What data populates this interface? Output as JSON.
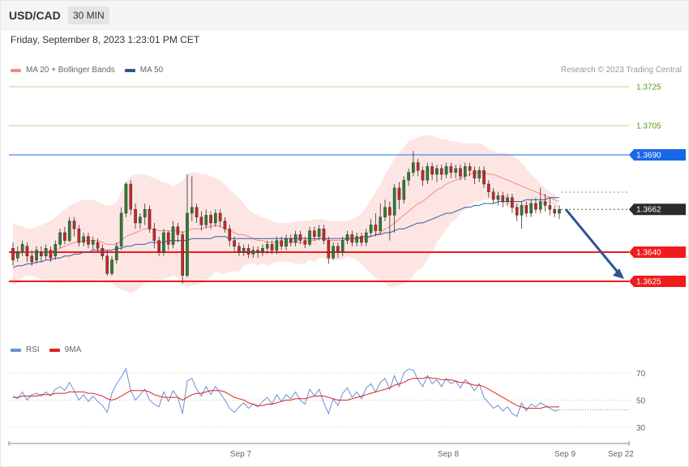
{
  "header": {
    "symbol": "USD/CAD",
    "timeframe": "30 MIN"
  },
  "datetime": "Friday, September 8, 2023 1:23:01 PM CET",
  "legend_main": [
    {
      "label": "MA 20 + Bollinger Bands",
      "color": "#f28b82"
    },
    {
      "label": "MA 50",
      "color": "#2f5597"
    }
  ],
  "legend_rsi": [
    {
      "label": "RSI",
      "color": "#6a8fd8"
    },
    {
      "label": "9MA",
      "color": "#e02020"
    }
  ],
  "copyright": "Research © 2023 Trading Central",
  "chart_data": {
    "type": "candlestick",
    "price_axis_labels": [
      "1.3725",
      "1.3705",
      "1.3690",
      "1.3662",
      "1.3640",
      "1.3625"
    ],
    "levels": [
      {
        "label": "1.3725",
        "value": 1.3725,
        "kind": "target"
      },
      {
        "label": "1.3705",
        "value": 1.3705,
        "kind": "target"
      },
      {
        "label": "1.3690",
        "value": 1.369,
        "kind": "resistance"
      },
      {
        "label": "1.3662",
        "value": 1.3662,
        "kind": "last_price"
      },
      {
        "label": "1.3640",
        "value": 1.364,
        "kind": "support"
      },
      {
        "label": "1.3625",
        "value": 1.3625,
        "kind": "support"
      }
    ],
    "x_tick_labels": [
      "Sep 7",
      "Sep 8",
      "Sep 9",
      "Sep 22"
    ],
    "rsi_levels": [
      "70",
      "50",
      "30"
    ],
    "forecast": {
      "from": 1.3662,
      "to": 1.3625
    },
    "candles": [
      [
        1.3642,
        1.3636,
        1.3645,
        1.3633
      ],
      [
        1.3637,
        1.364,
        1.3643,
        1.3635
      ],
      [
        1.364,
        1.3644,
        1.3646,
        1.3638
      ],
      [
        1.3643,
        1.3638,
        1.3645,
        1.3635
      ],
      [
        1.3638,
        1.3635,
        1.3641,
        1.3633
      ],
      [
        1.3636,
        1.3641,
        1.3643,
        1.3634
      ],
      [
        1.364,
        1.3638,
        1.3643,
        1.3635
      ],
      [
        1.3638,
        1.3642,
        1.3644,
        1.3636
      ],
      [
        1.3641,
        1.3637,
        1.3643,
        1.3635
      ],
      [
        1.3638,
        1.3644,
        1.3646,
        1.3636
      ],
      [
        1.3644,
        1.365,
        1.3652,
        1.3642
      ],
      [
        1.365,
        1.3646,
        1.3653,
        1.3644
      ],
      [
        1.3646,
        1.3656,
        1.3658,
        1.3645
      ],
      [
        1.3656,
        1.3652,
        1.3658,
        1.3648
      ],
      [
        1.3652,
        1.3645,
        1.3654,
        1.3643
      ],
      [
        1.3645,
        1.3648,
        1.365,
        1.3643
      ],
      [
        1.3648,
        1.3644,
        1.365,
        1.3642
      ],
      [
        1.3644,
        1.3646,
        1.3648,
        1.3641
      ],
      [
        1.3645,
        1.3642,
        1.3647,
        1.364
      ],
      [
        1.3642,
        1.3638,
        1.3644,
        1.3636
      ],
      [
        1.3638,
        1.3629,
        1.3641,
        1.3628
      ],
      [
        1.3629,
        1.3636,
        1.3638,
        1.3628
      ],
      [
        1.3636,
        1.3643,
        1.3645,
        1.3634
      ],
      [
        1.3643,
        1.366,
        1.3663,
        1.3641
      ],
      [
        1.366,
        1.3675,
        1.3676,
        1.3658
      ],
      [
        1.3675,
        1.3662,
        1.3677,
        1.3659
      ],
      [
        1.3662,
        1.3655,
        1.3665,
        1.3652
      ],
      [
        1.3655,
        1.3658,
        1.366,
        1.3652
      ],
      [
        1.3658,
        1.3662,
        1.3665,
        1.3654
      ],
      [
        1.3662,
        1.3652,
        1.3664,
        1.365
      ],
      [
        1.3652,
        1.3646,
        1.3655,
        1.3642
      ],
      [
        1.3646,
        1.364,
        1.3648,
        1.3638
      ],
      [
        1.364,
        1.365,
        1.3652,
        1.3638
      ],
      [
        1.365,
        1.3644,
        1.3651,
        1.3641
      ],
      [
        1.3644,
        1.3653,
        1.3656,
        1.3642
      ],
      [
        1.3653,
        1.3649,
        1.3655,
        1.3645
      ],
      [
        1.3649,
        1.3628,
        1.3651,
        1.3624
      ],
      [
        1.3628,
        1.366,
        1.368,
        1.3627
      ],
      [
        1.366,
        1.3663,
        1.3679,
        1.3656
      ],
      [
        1.3663,
        1.3658,
        1.3665,
        1.3655
      ],
      [
        1.3658,
        1.3654,
        1.3661,
        1.3651
      ],
      [
        1.3654,
        1.3659,
        1.3662,
        1.3652
      ],
      [
        1.3659,
        1.3655,
        1.3661,
        1.3652
      ],
      [
        1.3655,
        1.366,
        1.3662,
        1.3653
      ],
      [
        1.366,
        1.3656,
        1.3662,
        1.3653
      ],
      [
        1.3656,
        1.3652,
        1.3658,
        1.365
      ],
      [
        1.3652,
        1.3646,
        1.3654,
        1.3643
      ],
      [
        1.3646,
        1.3643,
        1.3648,
        1.364
      ],
      [
        1.3643,
        1.364,
        1.3645,
        1.3638
      ],
      [
        1.364,
        1.3642,
        1.3644,
        1.3638
      ],
      [
        1.3642,
        1.3639,
        1.3644,
        1.3637
      ],
      [
        1.3639,
        1.3641,
        1.3643,
        1.3637
      ],
      [
        1.3641,
        1.364,
        1.3643,
        1.3637
      ],
      [
        1.364,
        1.3642,
        1.3644,
        1.3638
      ],
      [
        1.3642,
        1.3644,
        1.3646,
        1.3639
      ],
      [
        1.3644,
        1.3641,
        1.3646,
        1.3639
      ],
      [
        1.3641,
        1.3646,
        1.3648,
        1.3639
      ],
      [
        1.3646,
        1.3643,
        1.3648,
        1.3641
      ],
      [
        1.3643,
        1.3647,
        1.3649,
        1.3641
      ],
      [
        1.3647,
        1.3645,
        1.3649,
        1.3643
      ],
      [
        1.3645,
        1.3649,
        1.3651,
        1.3643
      ],
      [
        1.3649,
        1.3646,
        1.3651,
        1.3644
      ],
      [
        1.3646,
        1.3644,
        1.3648,
        1.3642
      ],
      [
        1.3644,
        1.3651,
        1.3653,
        1.3643
      ],
      [
        1.3651,
        1.3648,
        1.3653,
        1.3646
      ],
      [
        1.3648,
        1.3652,
        1.3654,
        1.3646
      ],
      [
        1.3652,
        1.3646,
        1.3654,
        1.3644
      ],
      [
        1.3646,
        1.3637,
        1.3648,
        1.3634
      ],
      [
        1.3637,
        1.3643,
        1.3645,
        1.3636
      ],
      [
        1.3643,
        1.364,
        1.3645,
        1.3637
      ],
      [
        1.364,
        1.3646,
        1.3648,
        1.3638
      ],
      [
        1.3646,
        1.3649,
        1.3651,
        1.3644
      ],
      [
        1.3649,
        1.3645,
        1.3651,
        1.3643
      ],
      [
        1.3645,
        1.3648,
        1.365,
        1.3643
      ],
      [
        1.3648,
        1.3645,
        1.365,
        1.3643
      ],
      [
        1.3645,
        1.365,
        1.3652,
        1.3643
      ],
      [
        1.365,
        1.3654,
        1.3657,
        1.3648
      ],
      [
        1.3654,
        1.3651,
        1.366,
        1.3648
      ],
      [
        1.3651,
        1.3658,
        1.3665,
        1.3649
      ],
      [
        1.3658,
        1.3663,
        1.3667,
        1.3656
      ],
      [
        1.3663,
        1.3659,
        1.3666,
        1.3646
      ],
      [
        1.3659,
        1.3673,
        1.3675,
        1.365
      ],
      [
        1.3673,
        1.3667,
        1.3676,
        1.3662
      ],
      [
        1.3667,
        1.3677,
        1.3679,
        1.3665
      ],
      [
        1.3677,
        1.3681,
        1.3683,
        1.3674
      ],
      [
        1.3681,
        1.3686,
        1.3692,
        1.3679
      ],
      [
        1.3686,
        1.3682,
        1.3688,
        1.3679
      ],
      [
        1.3682,
        1.3677,
        1.3684,
        1.3674
      ],
      [
        1.3677,
        1.3684,
        1.3686,
        1.3675
      ],
      [
        1.3684,
        1.368,
        1.3686,
        1.3677
      ],
      [
        1.368,
        1.3683,
        1.3685,
        1.3676
      ],
      [
        1.3683,
        1.368,
        1.3685,
        1.3677
      ],
      [
        1.368,
        1.3684,
        1.3686,
        1.3678
      ],
      [
        1.3684,
        1.3681,
        1.3686,
        1.3678
      ],
      [
        1.3681,
        1.3683,
        1.3685,
        1.3678
      ],
      [
        1.3683,
        1.3679,
        1.3685,
        1.3677
      ],
      [
        1.3679,
        1.3684,
        1.3686,
        1.3677
      ],
      [
        1.3684,
        1.3682,
        1.3686,
        1.3679
      ],
      [
        1.3682,
        1.3678,
        1.3684,
        1.3675
      ],
      [
        1.3678,
        1.3682,
        1.3684,
        1.3676
      ],
      [
        1.3682,
        1.3675,
        1.3684,
        1.3673
      ],
      [
        1.3675,
        1.3671,
        1.3677,
        1.3668
      ],
      [
        1.3671,
        1.3667,
        1.3673,
        1.3665
      ],
      [
        1.3667,
        1.3669,
        1.3671,
        1.3664
      ],
      [
        1.3669,
        1.3666,
        1.3671,
        1.3663
      ],
      [
        1.3666,
        1.3668,
        1.367,
        1.3664
      ],
      [
        1.3668,
        1.3663,
        1.367,
        1.366
      ],
      [
        1.3663,
        1.3659,
        1.3665,
        1.3656
      ],
      [
        1.3659,
        1.3664,
        1.3666,
        1.3652
      ],
      [
        1.3664,
        1.366,
        1.3666,
        1.3658
      ],
      [
        1.366,
        1.3665,
        1.3667,
        1.3658
      ],
      [
        1.3665,
        1.3662,
        1.3668,
        1.366
      ],
      [
        1.3662,
        1.3666,
        1.3673,
        1.366
      ],
      [
        1.3666,
        1.3664,
        1.367,
        1.3661
      ],
      [
        1.3664,
        1.3662,
        1.3668,
        1.3659
      ],
      [
        1.3662,
        1.366,
        1.3664,
        1.3658
      ],
      [
        1.366,
        1.3662,
        1.3664,
        1.3657
      ]
    ],
    "ma20": [
      1.3639,
      1.3639,
      1.364,
      1.364,
      1.364,
      1.364,
      1.364,
      1.364,
      1.364,
      1.3641,
      1.3642,
      1.3643,
      1.3644,
      1.3645,
      1.3645,
      1.3646,
      1.3646,
      1.3646,
      1.3646,
      1.3645,
      1.3644,
      1.3644,
      1.3644,
      1.3646,
      1.3648,
      1.3649,
      1.365,
      1.3651,
      1.3652,
      1.3652,
      1.3652,
      1.3651,
      1.3651,
      1.3651,
      1.3651,
      1.3651,
      1.365,
      1.3651,
      1.3652,
      1.3652,
      1.3652,
      1.3653,
      1.3653,
      1.3654,
      1.3653,
      1.3652,
      1.3651,
      1.365,
      1.3649,
      1.3649,
      1.3648,
      1.3647,
      1.3646,
      1.3646,
      1.3645,
      1.3645,
      1.3645,
      1.3645,
      1.3645,
      1.3645,
      1.3645,
      1.3645,
      1.3645,
      1.3646,
      1.3646,
      1.3647,
      1.3647,
      1.3646,
      1.3646,
      1.3646,
      1.3646,
      1.3647,
      1.3647,
      1.3647,
      1.3647,
      1.3647,
      1.3648,
      1.3649,
      1.365,
      1.3652,
      1.3653,
      1.3655,
      1.3657,
      1.3659,
      1.3661,
      1.3663,
      1.3665,
      1.3666,
      1.3668,
      1.367,
      1.3672,
      1.3673,
      1.3675,
      1.3676,
      1.3677,
      1.3678,
      1.3679,
      1.368,
      1.3681,
      1.3681,
      1.3681,
      1.368,
      1.368,
      1.3679,
      1.3678,
      1.3677,
      1.3676,
      1.3675,
      1.3674,
      1.3673,
      1.3672,
      1.3671,
      1.367,
      1.3669,
      1.3668,
      1.3667,
      1.3666
    ],
    "ma50": [
      1.3632,
      1.3633,
      1.3633,
      1.3634,
      1.3634,
      1.3635,
      1.3635,
      1.3636,
      1.3636,
      1.3637,
      1.3637,
      1.3638,
      1.3638,
      1.3639,
      1.3639,
      1.364,
      1.364,
      1.3641,
      1.3641,
      1.3641,
      1.3641,
      1.3641,
      1.3642,
      1.3642,
      1.3643,
      1.3643,
      1.3644,
      1.3644,
      1.3644,
      1.3645,
      1.3645,
      1.3645,
      1.3645,
      1.3646,
      1.3646,
      1.3646,
      1.3646,
      1.3646,
      1.3647,
      1.3647,
      1.3647,
      1.3647,
      1.3647,
      1.3648,
      1.3648,
      1.3648,
      1.3647,
      1.3647,
      1.3647,
      1.3647,
      1.3647,
      1.3647,
      1.3647,
      1.3647,
      1.3647,
      1.3647,
      1.3647,
      1.3647,
      1.3647,
      1.3647,
      1.3647,
      1.3647,
      1.3647,
      1.3647,
      1.3647,
      1.3647,
      1.3647,
      1.3647,
      1.3647,
      1.3647,
      1.3647,
      1.3647,
      1.3647,
      1.3647,
      1.3648,
      1.3648,
      1.3648,
      1.3649,
      1.3649,
      1.365,
      1.365,
      1.3651,
      1.3652,
      1.3652,
      1.3653,
      1.3654,
      1.3655,
      1.3655,
      1.3656,
      1.3657,
      1.3658,
      1.3659,
      1.366,
      1.366,
      1.3661,
      1.3662,
      1.3663,
      1.3663,
      1.3664,
      1.3664,
      1.3665,
      1.3665,
      1.3665,
      1.3666,
      1.3666,
      1.3666,
      1.3666,
      1.3666,
      1.3666,
      1.3667,
      1.3667,
      1.3667,
      1.3667,
      1.3667,
      1.3668,
      1.3668,
      1.3668
    ],
    "bb_upper": [
      1.3655,
      1.3654,
      1.3653,
      1.3652,
      1.3652,
      1.3653,
      1.3654,
      1.3655,
      1.3656,
      1.3658,
      1.366,
      1.3662,
      1.3664,
      1.3665,
      1.3666,
      1.3667,
      1.3667,
      1.3667,
      1.3666,
      1.3665,
      1.3664,
      1.3664,
      1.3666,
      1.3671,
      1.3676,
      1.3679,
      1.368,
      1.368,
      1.368,
      1.3679,
      1.3678,
      1.3677,
      1.3676,
      1.3675,
      1.3674,
      1.3675,
      1.3677,
      1.368,
      1.3681,
      1.3681,
      1.368,
      1.368,
      1.3679,
      1.3678,
      1.3677,
      1.3675,
      1.3672,
      1.367,
      1.3668,
      1.3665,
      1.3662,
      1.366,
      1.3659,
      1.3658,
      1.3657,
      1.3656,
      1.3655,
      1.3655,
      1.3655,
      1.3655,
      1.3656,
      1.3656,
      1.3656,
      1.3656,
      1.3657,
      1.3657,
      1.3657,
      1.3656,
      1.3656,
      1.3656,
      1.3656,
      1.3656,
      1.3657,
      1.3658,
      1.366,
      1.3663,
      1.3667,
      1.3671,
      1.3675,
      1.368,
      1.3684,
      1.3688,
      1.3691,
      1.3694,
      1.3697,
      1.3698,
      1.3699,
      1.37,
      1.37,
      1.37,
      1.3699,
      1.3698,
      1.3698,
      1.3697,
      1.3697,
      1.3696,
      1.3696,
      1.3696,
      1.3696,
      1.3696,
      1.3695,
      1.3693,
      1.3692,
      1.3691,
      1.3691,
      1.3691,
      1.369,
      1.3688,
      1.3686,
      1.3683,
      1.368,
      1.3678,
      1.3675,
      1.3673,
      1.3671,
      1.367
    ],
    "bb_lower": [
      1.3623,
      1.3624,
      1.3627,
      1.3628,
      1.3628,
      1.3627,
      1.3626,
      1.3625,
      1.3624,
      1.3624,
      1.3624,
      1.3624,
      1.3624,
      1.3625,
      1.3624,
      1.3625,
      1.3625,
      1.3625,
      1.3626,
      1.3625,
      1.3624,
      1.3624,
      1.3622,
      1.3621,
      1.362,
      1.3619,
      1.362,
      1.3622,
      1.3624,
      1.3625,
      1.3626,
      1.3625,
      1.3626,
      1.3627,
      1.3628,
      1.3627,
      1.3623,
      1.3622,
      1.3623,
      1.3623,
      1.3624,
      1.3626,
      1.3627,
      1.363,
      1.3629,
      1.3629,
      1.363,
      1.363,
      1.363,
      1.3633,
      1.3634,
      1.3634,
      1.3633,
      1.3634,
      1.3633,
      1.3634,
      1.3635,
      1.3635,
      1.3635,
      1.3635,
      1.3634,
      1.3634,
      1.3634,
      1.3636,
      1.3635,
      1.3637,
      1.3637,
      1.3636,
      1.3636,
      1.3636,
      1.3636,
      1.3638,
      1.3637,
      1.3636,
      1.3634,
      1.3631,
      1.3629,
      1.3627,
      1.3625,
      1.3624,
      1.3622,
      1.3622,
      1.3623,
      1.3624,
      1.3625,
      1.3628,
      1.3631,
      1.3632,
      1.3636,
      1.364,
      1.3645,
      1.3648,
      1.3652,
      1.3655,
      1.3657,
      1.366,
      1.3662,
      1.3664,
      1.3666,
      1.3666,
      1.3667,
      1.3667,
      1.3668,
      1.3667,
      1.3665,
      1.3663,
      1.3662,
      1.3662,
      1.3662,
      1.3663,
      1.3664,
      1.3664,
      1.3665,
      1.3665,
      1.3665,
      1.3664,
      1.3662
    ],
    "rsi": [
      53,
      51,
      56,
      50,
      54,
      55,
      53,
      56,
      53,
      58,
      60,
      57,
      63,
      57,
      50,
      54,
      49,
      53,
      49,
      46,
      41,
      55,
      62,
      67,
      73,
      57,
      50,
      54,
      58,
      50,
      47,
      45,
      56,
      49,
      57,
      52,
      40,
      64,
      66,
      58,
      53,
      60,
      54,
      60,
      55,
      50,
      44,
      41,
      45,
      48,
      44,
      47,
      45,
      49,
      52,
      47,
      54,
      49,
      54,
      51,
      56,
      50,
      47,
      58,
      53,
      58,
      48,
      40,
      51,
      46,
      55,
      59,
      52,
      56,
      51,
      59,
      62,
      56,
      63,
      66,
      58,
      68,
      60,
      70,
      73,
      72,
      65,
      60,
      68,
      62,
      65,
      60,
      66,
      62,
      64,
      59,
      65,
      62,
      57,
      62,
      52,
      48,
      44,
      46,
      42,
      45,
      40,
      38,
      48,
      42,
      47,
      45,
      48,
      46,
      44,
      42,
      43
    ],
    "rsi_ma": [
      52,
      52,
      53,
      53,
      53,
      53,
      54,
      54,
      54,
      55,
      55,
      55,
      56,
      56,
      56,
      56,
      55,
      55,
      54,
      53,
      51,
      50,
      51,
      53,
      55,
      57,
      57,
      57,
      57,
      56,
      54,
      53,
      52,
      52,
      52,
      52,
      50,
      52,
      54,
      55,
      55,
      56,
      57,
      57,
      57,
      56,
      54,
      52,
      51,
      50,
      48,
      47,
      46,
      46,
      47,
      47,
      48,
      49,
      50,
      50,
      51,
      51,
      51,
      52,
      53,
      53,
      53,
      52,
      51,
      50,
      50,
      50,
      51,
      52,
      53,
      54,
      55,
      56,
      57,
      58,
      59,
      61,
      62,
      63,
      65,
      66,
      66,
      66,
      67,
      66,
      66,
      65,
      65,
      65,
      64,
      63,
      63,
      62,
      61,
      61,
      60,
      58,
      56,
      54,
      52,
      50,
      48,
      46,
      45,
      44,
      44,
      44,
      44,
      45,
      45,
      45,
      45
    ]
  }
}
